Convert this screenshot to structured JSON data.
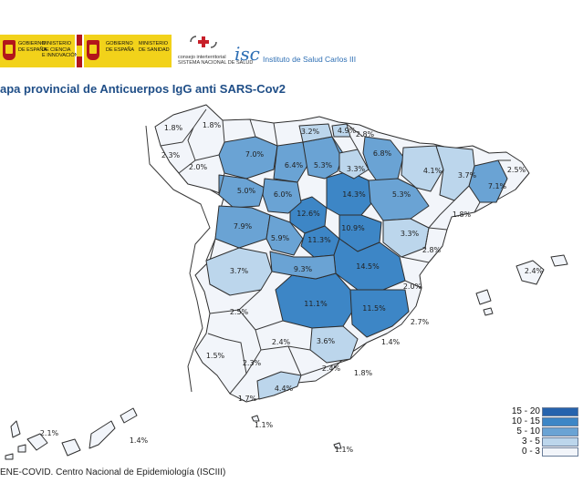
{
  "logos": {
    "gobierno_ciencia": "GOBIERNO\nDE ESPAÑA",
    "ministerio_ciencia": "MINISTERIO\nDE CIENCIA\nE INNOVACIÓN",
    "gobierno_sanidad": "GOBIERNO\nDE ESPAÑA",
    "ministerio_sanidad": "MINISTERIO\nDE SANIDAD",
    "consejo": "consejo interterritorial\nSISTEMA NACIONAL DE SALUD",
    "instituto": "Instituto de Salud Carlos III"
  },
  "title": "apa provincial de Anticuerpos IgG anti SARS-Cov2",
  "legend": {
    "ranges": [
      {
        "label": "15 - 20",
        "color": "#2663ad"
      },
      {
        "label": "10 - 15",
        "color": "#3d86c6"
      },
      {
        "label": "5 - 10",
        "color": "#6aa3d4"
      },
      {
        "label": "3 - 5",
        "color": "#bcd6ec"
      },
      {
        "label": "0 - 3",
        "color": "#f2f5fa"
      }
    ]
  },
  "provinces": [
    {
      "name": "A Coruña",
      "value": "1.8%"
    },
    {
      "name": "Lugo",
      "value": "1.8%"
    },
    {
      "name": "Pontevedra",
      "value": "2.3%"
    },
    {
      "name": "Ourense",
      "value": "2.0%"
    },
    {
      "name": "Asturias",
      "value": ""
    },
    {
      "name": "Cantabria",
      "value": "3.2%"
    },
    {
      "name": "Bizkaia",
      "value": "4.9%"
    },
    {
      "name": "Gipuzkoa",
      "value": "2.8%"
    },
    {
      "name": "Navarra",
      "value": "6.8%"
    },
    {
      "name": "Álava",
      "value": "3.3%"
    },
    {
      "name": "León",
      "value": "7.0%"
    },
    {
      "name": "Palencia",
      "value": "6.4%"
    },
    {
      "name": "Burgos",
      "value": "5.3%"
    },
    {
      "name": "La Rioja",
      "value": ""
    },
    {
      "name": "Zamora",
      "value": "5.0%"
    },
    {
      "name": "Valladolid",
      "value": "6.0%"
    },
    {
      "name": "Soria",
      "value": "14.3%"
    },
    {
      "name": "Zaragoza",
      "value": "5.3%"
    },
    {
      "name": "Huesca",
      "value": "4.1%"
    },
    {
      "name": "Lleida",
      "value": "3.7%"
    },
    {
      "name": "Girona",
      "value": "2.5%"
    },
    {
      "name": "Barcelona",
      "value": "7.1%"
    },
    {
      "name": "Tarragona",
      "value": "1.8%"
    },
    {
      "name": "Salamanca",
      "value": "7.9%"
    },
    {
      "name": "Ávila",
      "value": "5.9%"
    },
    {
      "name": "Segovia",
      "value": "12.6%"
    },
    {
      "name": "Guadalajara",
      "value": "10.9%"
    },
    {
      "name": "Madrid",
      "value": "11.3%"
    },
    {
      "name": "Teruel",
      "value": "3.3%"
    },
    {
      "name": "Castellón",
      "value": "2.8%"
    },
    {
      "name": "Cáceres",
      "value": "3.7%"
    },
    {
      "name": "Toledo",
      "value": "9.3%"
    },
    {
      "name": "Cuenca",
      "value": "14.5%"
    },
    {
      "name": "Valencia",
      "value": "2.0%"
    },
    {
      "name": "Badajoz",
      "value": "2.5%"
    },
    {
      "name": "Ciudad Real",
      "value": "11.1%"
    },
    {
      "name": "Albacete",
      "value": "11.5%"
    },
    {
      "name": "Alicante",
      "value": "2.7%"
    },
    {
      "name": "Huelva",
      "value": "1.5%"
    },
    {
      "name": "Sevilla",
      "value": "2.3%"
    },
    {
      "name": "Córdoba",
      "value": "2.4%"
    },
    {
      "name": "Jaén",
      "value": "3.6%"
    },
    {
      "name": "Granada",
      "value": "2.4%"
    },
    {
      "name": "Almería",
      "value": "1.8%"
    },
    {
      "name": "Murcia",
      "value": "1.4%"
    },
    {
      "name": "Málaga",
      "value": "4.4%"
    },
    {
      "name": "Cádiz",
      "value": "1.7%"
    },
    {
      "name": "Baleares",
      "value": "2.4%"
    },
    {
      "name": "Ceuta",
      "value": "1.1%"
    },
    {
      "name": "Melilla",
      "value": "1.1%"
    },
    {
      "name": "Santa Cruz de Tenerife",
      "value": "2.1%"
    },
    {
      "name": "Las Palmas",
      "value": "1.4%"
    }
  ],
  "source": "ENE-COVID. Centro Nacional de Epidemiología (ISCIII)"
}
